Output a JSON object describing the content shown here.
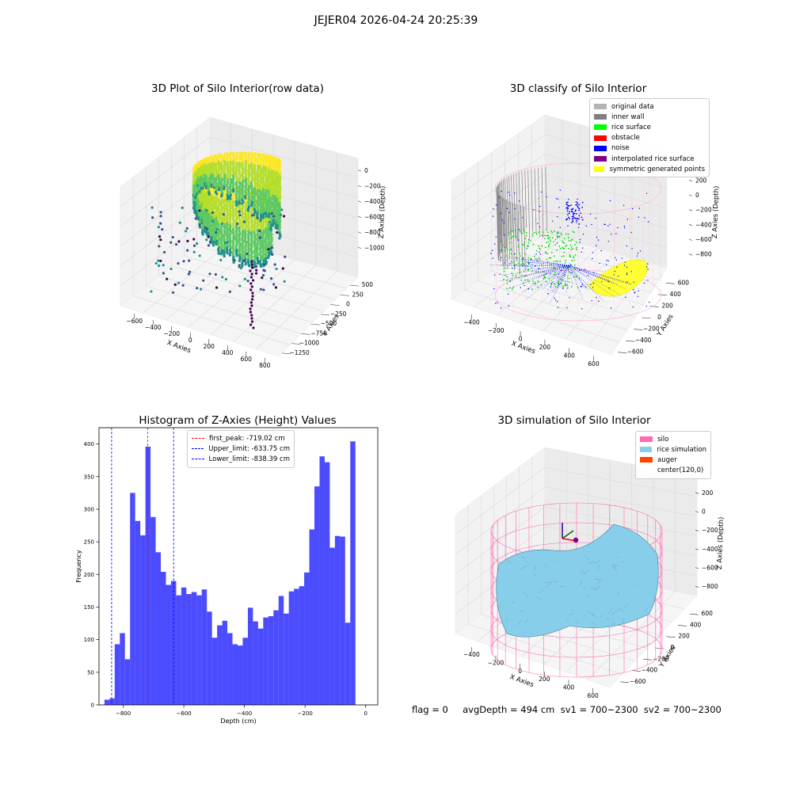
{
  "suptitle": "JEJER04 2026-04-24 20:25:39",
  "status_line": "flag = 0     avgDepth = 494 cm  sv1 = 700~2300  sv2 = 700~2300",
  "plot_raw": {
    "title": "3D Plot of Silo Interior(row data)",
    "xlabel": "X Axies",
    "ylabel": "Y Axies",
    "zlabel": "Z Axies (Depth)",
    "xticks": [
      "−600",
      "−400",
      "−200",
      "0",
      "200",
      "400",
      "600",
      "800"
    ],
    "yticks": [
      "500",
      "250",
      "0",
      "−250",
      "−500",
      "−750",
      "−1000",
      "−1250"
    ],
    "zticks": [
      "0",
      "−200",
      "−400",
      "−600",
      "−800",
      "−1000"
    ]
  },
  "plot_classify": {
    "title": "3D classify of Silo Interior",
    "xlabel": "X Axies",
    "ylabel": "Y Axies",
    "zlabel": "Z Axies (Depth)",
    "xticks": [
      "−400",
      "−200",
      "0",
      "200",
      "400",
      "600"
    ],
    "yticks": [
      "600",
      "400",
      "200",
      "0",
      "−200",
      "−400",
      "−600"
    ],
    "zticks": [
      "200",
      "0",
      "−200",
      "−400",
      "−600",
      "−800"
    ],
    "legend": [
      {
        "label": "original data",
        "color": "#b3b3b3"
      },
      {
        "label": "inner wall",
        "color": "#808080"
      },
      {
        "label": "rice surface",
        "color": "#00ff00"
      },
      {
        "label": "obstacle",
        "color": "#ff0000"
      },
      {
        "label": "noise",
        "color": "#0000ff"
      },
      {
        "label": "interpolated rice surface",
        "color": "#800080"
      },
      {
        "label": "symmetric generated points",
        "color": "#ffff00"
      }
    ]
  },
  "plot_sim": {
    "title": "3D simulation of Silo Interior",
    "xlabel": "X Axies",
    "ylabel": "Y Axies",
    "zlabel": "Z Axies (Depth)",
    "xticks": [
      "−400",
      "−200",
      "0",
      "200",
      "400",
      "600"
    ],
    "yticks": [
      "600",
      "400",
      "200",
      "0",
      "−200",
      "−400",
      "−600"
    ],
    "zticks": [
      "200",
      "0",
      "−200",
      "−400",
      "−600",
      "−800"
    ],
    "legend": [
      {
        "label": "silo",
        "color": "#ff69b4"
      },
      {
        "label": "rice simulation",
        "color": "#87ceeb"
      },
      {
        "label": "auger",
        "color": "#ff4500"
      },
      {
        "label": "center(120,0)",
        "color": "#ffffff"
      }
    ]
  },
  "chart_data": {
    "type": "bar",
    "title": "Histogram of Z-Axies (Height) Values",
    "xlabel": "Depth (cm)",
    "ylabel": "Frequency",
    "xlim": [
      -880,
      40
    ],
    "ylim": [
      0,
      425
    ],
    "xticks": [
      -800,
      -600,
      -400,
      -200,
      0
    ],
    "xtick_labels": [
      "−800",
      "−600",
      "−400",
      "−200",
      "0"
    ],
    "yticks": [
      0,
      50,
      100,
      150,
      200,
      250,
      300,
      350,
      400
    ],
    "bar_color": "#0000ff",
    "bin_start": -862,
    "bin_width": 16.9,
    "values": [
      8,
      10,
      93,
      110,
      70,
      325,
      282,
      260,
      396,
      288,
      234,
      204,
      184,
      190,
      168,
      180,
      170,
      173,
      168,
      177,
      143,
      103,
      122,
      129,
      110,
      93,
      91,
      103,
      149,
      128,
      117,
      134,
      136,
      145,
      167,
      140,
      174,
      178,
      182,
      203,
      269,
      335,
      381,
      372,
      241,
      259,
      258,
      126,
      404
    ],
    "lines": [
      {
        "label": "first_peak: -719.02 cm",
        "x": -719.02,
        "color": "#ff0000"
      },
      {
        "label": "Upper_limit: -633.75 cm",
        "x": -633.75,
        "color": "#0000ff"
      },
      {
        "label": "Lower_limit: -838.39 cm",
        "x": -838.39,
        "color": "#0000ff"
      }
    ],
    "legend_position": "upper center"
  }
}
